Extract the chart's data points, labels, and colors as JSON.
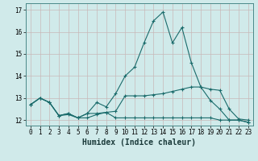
{
  "title": "",
  "xlabel": "Humidex (Indice chaleur)",
  "ylabel": "",
  "background_color": "#d0eaea",
  "grid_color": "#b8d8d8",
  "line_color": "#1a6b6b",
  "x": [
    0,
    1,
    2,
    3,
    4,
    5,
    6,
    7,
    8,
    9,
    10,
    11,
    12,
    13,
    14,
    15,
    16,
    17,
    18,
    19,
    20,
    21,
    22,
    23
  ],
  "series_peak": [
    12.7,
    13.0,
    12.8,
    12.2,
    12.3,
    12.1,
    12.3,
    12.8,
    12.6,
    13.2,
    14.0,
    14.4,
    15.5,
    16.5,
    16.9,
    15.5,
    16.2,
    14.6,
    13.5,
    12.9,
    12.5,
    12.0,
    12.0,
    11.9
  ],
  "series_mid": [
    12.7,
    13.0,
    12.8,
    12.2,
    12.3,
    12.1,
    12.3,
    12.3,
    12.35,
    12.4,
    13.1,
    13.1,
    13.1,
    13.15,
    13.2,
    13.3,
    13.4,
    13.5,
    13.5,
    13.4,
    13.35,
    12.5,
    12.05,
    12.0
  ],
  "series_flat": [
    12.7,
    13.0,
    12.8,
    12.2,
    12.25,
    12.1,
    12.1,
    12.25,
    12.35,
    12.1,
    12.1,
    12.1,
    12.1,
    12.1,
    12.1,
    12.1,
    12.1,
    12.1,
    12.1,
    12.1,
    12.0,
    12.0,
    12.0,
    11.9
  ],
  "ylim": [
    11.75,
    17.3
  ],
  "xlim": [
    -0.5,
    23.5
  ],
  "yticks": [
    12,
    13,
    14,
    15,
    16,
    17
  ],
  "xticks": [
    0,
    1,
    2,
    3,
    4,
    5,
    6,
    7,
    8,
    9,
    10,
    11,
    12,
    13,
    14,
    15,
    16,
    17,
    18,
    19,
    20,
    21,
    22,
    23
  ],
  "marker": "+",
  "linewidth": 0.8,
  "markersize": 3,
  "xlabel_fontsize": 7,
  "tick_fontsize": 5.5
}
